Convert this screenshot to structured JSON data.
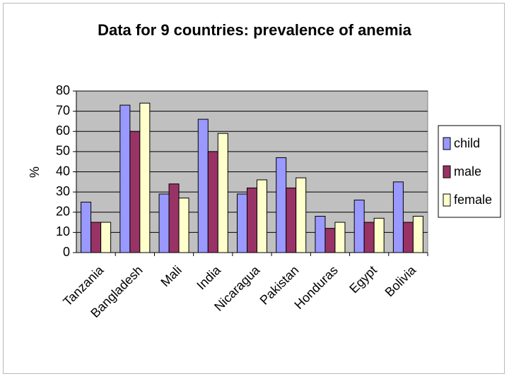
{
  "chart_data": {
    "type": "bar",
    "title": "Data for 9 countries: prevalence of anemia",
    "xlabel": "",
    "ylabel": "%",
    "ylim": [
      0,
      80
    ],
    "yticks": [
      0,
      10,
      20,
      30,
      40,
      50,
      60,
      70,
      80
    ],
    "categories": [
      "Tanzania",
      "Bangladesh",
      "Mali",
      "India",
      "Nicaragua",
      "Pakistan",
      "Honduras",
      "Egypt",
      "Bolivia"
    ],
    "series": [
      {
        "name": "child",
        "color": "#9999ff",
        "values": [
          25,
          73,
          29,
          66,
          29,
          47,
          18,
          26,
          35
        ]
      },
      {
        "name": "male",
        "color": "#993366",
        "values": [
          15,
          60,
          34,
          50,
          32,
          32,
          12,
          15,
          15
        ]
      },
      {
        "name": "female",
        "color": "#ffffcc",
        "values": [
          15,
          74,
          27,
          59,
          36,
          37,
          15,
          17,
          18
        ]
      }
    ],
    "grid": true,
    "plot_background": "#c0c0c0",
    "legend_position": "right"
  }
}
